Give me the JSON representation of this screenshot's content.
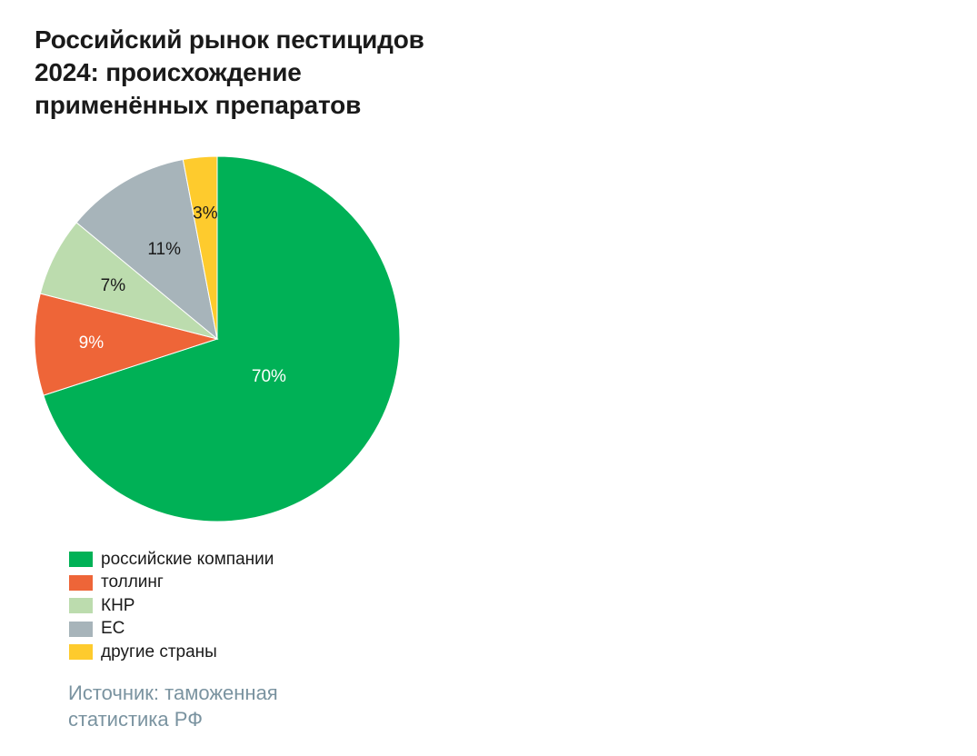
{
  "title_lines": [
    "Российский рынок пестицидов",
    "2024: происхождение",
    "применённых препаратов"
  ],
  "chart_data": {
    "type": "pie",
    "title": "Российский рынок пестицидов 2024: происхождение применённых препаратов",
    "start": "12 o'clock",
    "direction": "clockwise",
    "slices": [
      {
        "label": "российские компании",
        "value": 70,
        "display": "70%",
        "color": "#00b156",
        "text_color": "#ffffff"
      },
      {
        "label": "толлинг",
        "value": 9,
        "display": "9%",
        "color": "#ee6538",
        "text_color": "#ffffff"
      },
      {
        "label": "КНР",
        "value": 7,
        "display": "7%",
        "color": "#bcdcae",
        "text_color": "#1a1a1a"
      },
      {
        "label": "ЕС",
        "value": 11,
        "display": "11%",
        "color": "#a7b4ba",
        "text_color": "#1a1a1a"
      },
      {
        "label": "другие страны",
        "value": 3,
        "display": "3%",
        "color": "#fecb2d",
        "text_color": "#1a1a1a"
      }
    ],
    "legend": [
      {
        "label": "российские компании",
        "color": "#00b156"
      },
      {
        "label": "толлинг",
        "color": "#ee6538"
      },
      {
        "label": "КНР",
        "color": "#bcdcae"
      },
      {
        "label": "ЕС",
        "color": "#a7b4ba"
      },
      {
        "label": "другие страны",
        "color": "#fecb2d"
      }
    ],
    "legend_position": "bottom-left"
  },
  "source_lines": [
    "Источник: таможенная",
    "статистика РФ"
  ]
}
